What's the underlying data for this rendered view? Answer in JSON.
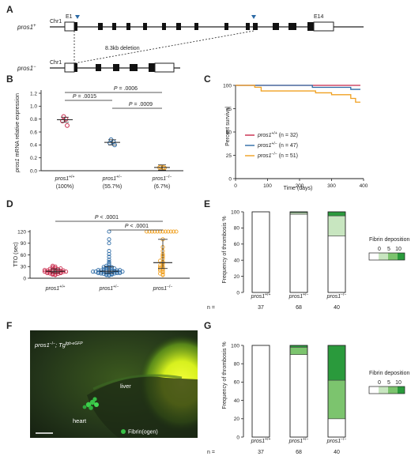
{
  "colors": {
    "wt": "#c8284a",
    "het": "#2c6aa5",
    "ko": "#f0a020",
    "fibrin1": "#c8e6c0",
    "fibrin2": "#7cc46e",
    "fibrin3": "#2a9a3c"
  },
  "panelA": {
    "label": "A",
    "wt_label": "pros1",
    "wt_sup": "+",
    "ko_label": "pros1",
    "ko_sup": "−",
    "chr": "Chr1",
    "exon_first": "E1",
    "exon_last": "E14",
    "deletion": "8.3kb deletion"
  },
  "panelB": {
    "label": "B",
    "ylabel_gene": "pros1",
    "ylabel_rest": " mRNA relative expression",
    "yticks": [
      "0.0",
      "0.2",
      "0.4",
      "0.6",
      "0.8",
      "1.0",
      "1.2"
    ],
    "groups": [
      {
        "name": "pros1",
        "sup": "+/+",
        "pct": "(100%)"
      },
      {
        "name": "pros1",
        "sup": "+/−",
        "pct": "(55.7%)"
      },
      {
        "name": "pros1",
        "sup": "−/−",
        "pct": "(6.7%)"
      }
    ],
    "pvals": [
      {
        "p": "P",
        "eq": " = .0006"
      },
      {
        "p": "P",
        "eq": " = .0015"
      },
      {
        "p": "P",
        "eq": " = .0009"
      }
    ]
  },
  "panelC": {
    "label": "C",
    "ylabel": "Percent survival",
    "xlabel": "Time (days)",
    "yticks": [
      "0",
      "25",
      "50",
      "75",
      "100"
    ],
    "xticks": [
      "0",
      "100",
      "200",
      "300",
      "400"
    ],
    "legend": [
      {
        "name": "pros1",
        "sup": "+/+",
        "n": " (n = 32)"
      },
      {
        "name": "pros1",
        "sup": "+/−",
        "n": " (n = 47)"
      },
      {
        "name": "pros1",
        "sup": "−/−",
        "n": " (n = 51)"
      }
    ]
  },
  "panelD": {
    "label": "D",
    "ylabel": "TTO (sec)",
    "yticks": [
      "0",
      "30",
      "60",
      "90",
      "120"
    ],
    "groups": [
      {
        "name": "pros1",
        "sup": "+/+"
      },
      {
        "name": "pros1",
        "sup": "+/−"
      },
      {
        "name": "pros1",
        "sup": "−/−"
      }
    ],
    "pvals": [
      {
        "p": "P",
        "eq": " < .0001"
      },
      {
        "p": "P",
        "eq": " < .0001"
      }
    ]
  },
  "panelE": {
    "label": "E",
    "ylabel": "Frequency of thrombosis %",
    "yticks": [
      "0",
      "20",
      "40",
      "60",
      "80",
      "100"
    ],
    "groups": [
      {
        "name": "pros1",
        "sup": "+/+"
      },
      {
        "name": "pros1",
        "sup": "+/−"
      },
      {
        "name": "pros1",
        "sup": "−/−"
      }
    ],
    "n_label": "n =",
    "n_values": [
      "37",
      "68",
      "40"
    ],
    "legend_title": "Fibrin deposition",
    "legend_ticks": [
      "0",
      "5",
      "10"
    ]
  },
  "panelF": {
    "label": "F",
    "genotype": "pros1",
    "genotype_sup": "−/−",
    "transgene": "; Tg",
    "transgene_sup": "fgb-eGFP",
    "liver": "liver",
    "heart": "heart",
    "legend": "Fibrin(ogen)"
  },
  "panelG": {
    "label": "G",
    "ylabel": "Frequency of thrombosis %",
    "yticks": [
      "0",
      "20",
      "40",
      "60",
      "80",
      "100"
    ],
    "groups": [
      {
        "name": "pros1",
        "sup": "+/+"
      },
      {
        "name": "pros1",
        "sup": "+/−"
      },
      {
        "name": "pros1",
        "sup": "−/−"
      }
    ],
    "n_label": "n =",
    "n_values": [
      "37",
      "68",
      "40"
    ],
    "legend_title": "Fibrin deposition",
    "legend_ticks": [
      "0",
      "5",
      "10"
    ]
  },
  "chart_data": [
    {
      "panel": "B",
      "type": "scatter",
      "categories": [
        "pros1+/+",
        "pros1+/−",
        "pros1−/−"
      ],
      "ylim": [
        0,
        1.2
      ],
      "means": [
        0.79,
        0.44,
        0.05
      ],
      "points": [
        [
          0.84,
          0.8,
          0.77,
          0.7
        ],
        [
          0.48,
          0.45,
          0.43,
          0.4
        ],
        [
          0.06,
          0.05,
          0.05,
          0.045
        ]
      ]
    },
    {
      "panel": "C",
      "type": "line",
      "xlim": [
        0,
        400
      ],
      "ylim": [
        0,
        100
      ],
      "series": [
        {
          "name": "pros1+/+ (n = 32)",
          "x": [
            0,
            390
          ],
          "y": [
            100,
            100
          ]
        },
        {
          "name": "pros1+/− (n = 47)",
          "x": [
            0,
            240,
            240,
            360,
            360,
            390
          ],
          "y": [
            100,
            100,
            97.9,
            97.9,
            95.7,
            95.7
          ]
        },
        {
          "name": "pros1−/− (n = 51)",
          "x": [
            0,
            60,
            60,
            80,
            80,
            250,
            250,
            300,
            300,
            360,
            360,
            375,
            375,
            390
          ],
          "y": [
            100,
            100,
            98,
            98,
            94,
            94,
            92,
            92,
            90,
            90,
            86,
            86,
            82,
            82
          ]
        }
      ]
    },
    {
      "panel": "D",
      "type": "scatter",
      "categories": [
        "pros1+/+",
        "pros1+/−",
        "pros1−/−"
      ],
      "ylim": [
        0,
        120
      ],
      "medians": [
        18,
        18,
        40
      ],
      "iqr": [
        [
          14,
          24
        ],
        [
          13,
          30
        ],
        [
          25,
          100
        ]
      ],
      "points": [
        [
          8,
          9,
          10,
          11,
          11,
          12,
          13,
          13,
          14,
          14,
          15,
          15,
          15,
          16,
          16,
          17,
          17,
          18,
          18,
          18,
          19,
          19,
          20,
          20,
          21,
          22,
          22,
          23,
          24,
          25,
          26,
          28,
          30,
          32
        ],
        [
          7,
          8,
          9,
          10,
          10,
          11,
          11,
          12,
          12,
          13,
          13,
          13,
          14,
          14,
          14,
          15,
          15,
          15,
          16,
          16,
          16,
          17,
          17,
          17,
          18,
          18,
          18,
          19,
          19,
          20,
          20,
          21,
          21,
          22,
          22,
          23,
          24,
          25,
          26,
          27,
          28,
          29,
          30,
          32,
          35,
          38,
          42,
          48,
          55,
          62,
          70,
          90,
          100,
          120
        ],
        [
          8,
          10,
          12,
          15,
          18,
          20,
          22,
          24,
          26,
          28,
          30,
          33,
          36,
          40,
          42,
          45,
          50,
          55,
          58,
          62,
          70,
          80,
          100,
          120,
          120,
          120,
          120,
          120,
          120,
          120,
          120,
          120,
          120,
          120,
          120
        ]
      ]
    },
    {
      "panel": "E",
      "type": "bar",
      "categories": [
        "pros1+/+",
        "pros1+/−",
        "pros1−/−"
      ],
      "ylim": [
        0,
        100
      ],
      "series": [
        {
          "name": "0",
          "values": [
            100,
            97,
            70
          ]
        },
        {
          "name": "5",
          "values": [
            0,
            2,
            25
          ]
        },
        {
          "name": "10",
          "values": [
            0,
            1,
            5
          ]
        }
      ]
    },
    {
      "panel": "G",
      "type": "bar",
      "categories": [
        "pros1+/+",
        "pros1+/−",
        "pros1−/−"
      ],
      "ylim": [
        0,
        100
      ],
      "series": [
        {
          "name": "0",
          "values": [
            100,
            90,
            20
          ]
        },
        {
          "name": "5",
          "values": [
            0,
            8,
            42
          ]
        },
        {
          "name": "10",
          "values": [
            0,
            2,
            38
          ]
        }
      ]
    }
  ]
}
